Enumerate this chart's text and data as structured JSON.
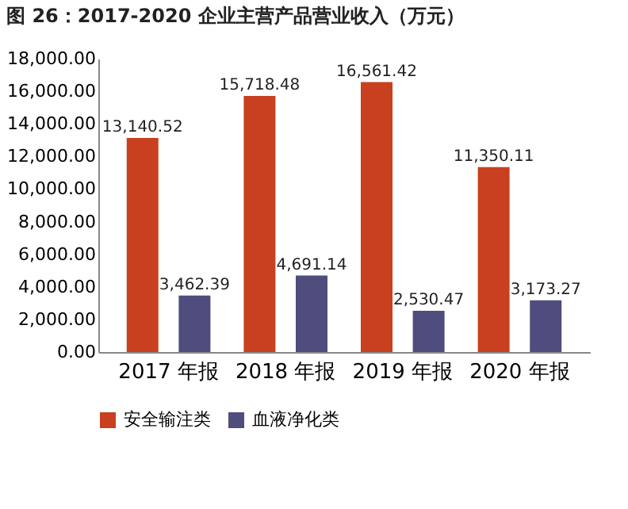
{
  "chart_data": {
    "type": "bar",
    "title": "图 26：2017-2020 企业主营产品营业收入（万元）",
    "categories": [
      "2017 年报",
      "2018 年报",
      "2019 年报",
      "2020 年报"
    ],
    "series": [
      {
        "name": "安全输注类",
        "color": "#c8401f",
        "values": [
          13140.52,
          15718.48,
          16561.42,
          11350.11
        ],
        "value_labels": [
          "13,140.52",
          "15,718.48",
          "16,561.42",
          "11,350.11"
        ]
      },
      {
        "name": "血液净化类",
        "color": "#4f4d7d",
        "values": [
          3462.39,
          4691.14,
          2530.47,
          3173.27
        ],
        "value_labels": [
          "3,462.39",
          "4,691.14",
          "2,530.47",
          "3,173.27"
        ]
      }
    ],
    "ylim": [
      0,
      18000
    ],
    "yticks": [
      {
        "value": 0,
        "label": "0.00"
      },
      {
        "value": 2000,
        "label": "2,000.00"
      },
      {
        "value": 4000,
        "label": "4,000.00"
      },
      {
        "value": 6000,
        "label": "6,000.00"
      },
      {
        "value": 8000,
        "label": "8,000.00"
      },
      {
        "value": 10000,
        "label": "10,000.00"
      },
      {
        "value": 12000,
        "label": "12,000.00"
      },
      {
        "value": 14000,
        "label": "14,000.00"
      },
      {
        "value": 16000,
        "label": "16,000.00"
      },
      {
        "value": 18000,
        "label": "18,000.00"
      }
    ],
    "grid": false,
    "legend": "bottom"
  }
}
